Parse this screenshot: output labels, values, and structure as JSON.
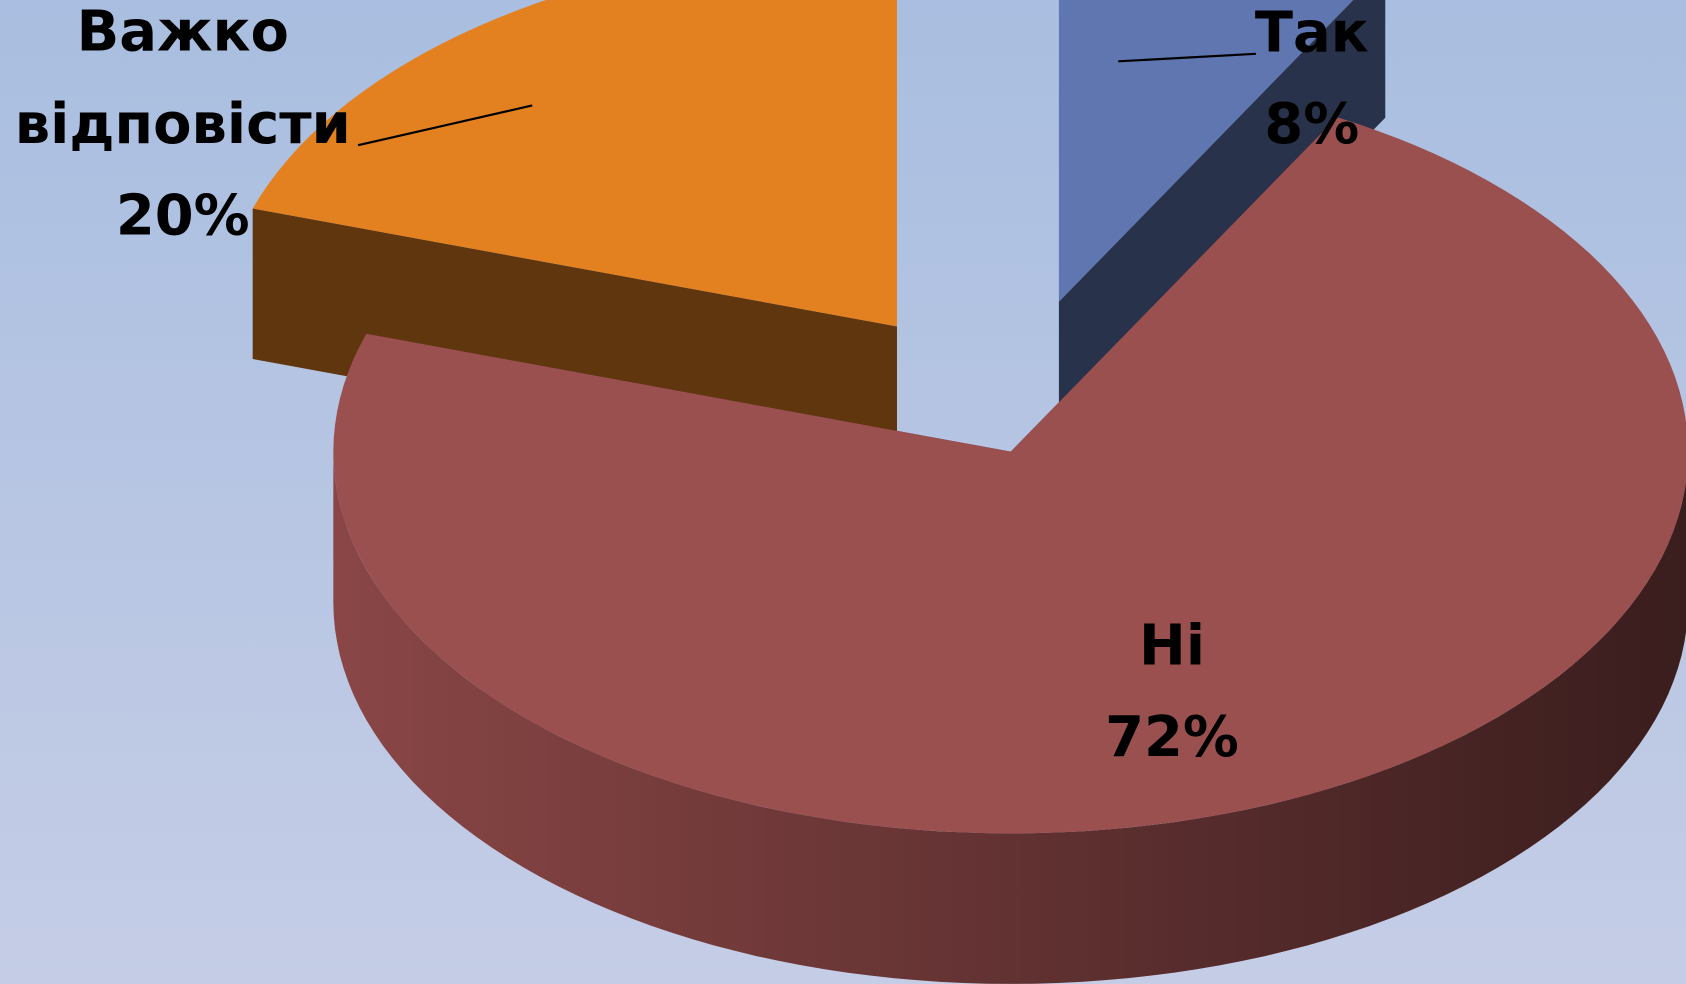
{
  "chart_data": {
    "type": "pie3d",
    "categories": [
      "Так",
      "Ні",
      "Важко відповісти"
    ],
    "values": [
      8,
      72,
      20
    ],
    "value_labels": [
      "8%",
      "72%",
      "20%"
    ],
    "colors": [
      "#5f76b0",
      "#9b5050",
      "#e38020"
    ]
  }
}
